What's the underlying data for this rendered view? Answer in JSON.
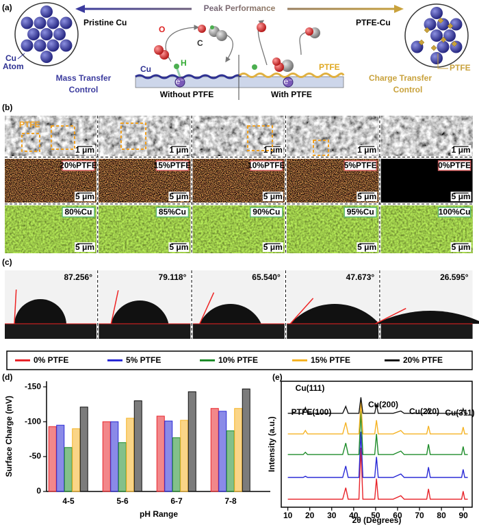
{
  "panel_a": {
    "label": "(a)",
    "arrow_title": "Peak Performance",
    "left_title": "Pristine Cu",
    "right_title": "PTFE-Cu",
    "atom_label": [
      "Cu",
      "Atom"
    ],
    "left_caption": [
      "Mass Transfer",
      "Control"
    ],
    "right_caption": [
      "Charge Transfer",
      "Control"
    ],
    "without": "Without PTFE",
    "with": "With PTFE",
    "cu_label": "Cu",
    "ptfe_label": "PTFE",
    "ptfe_callout": "PTFE",
    "atom_o": "O",
    "atom_c": "C",
    "atom_h": "H",
    "electron": "e⁻"
  },
  "panel_b": {
    "label": "(b)",
    "ptfe_label": "PTFE",
    "scale_sem": "1 μm",
    "scale_map": "5 μm",
    "ptfe_maps": [
      "20%PTFE",
      "15%PTFE",
      "10%PTFE",
      "5%PTFE",
      "0%PTFE"
    ],
    "cu_maps": [
      "80%Cu",
      "85%Cu",
      "90%Cu",
      "95%Cu",
      "100%Cu"
    ]
  },
  "panel_c": {
    "label": "(c)",
    "angles": [
      "87.256°",
      "79.118°",
      "65.540°",
      "47.673°",
      "26.595°"
    ]
  },
  "chart_data": [
    {
      "type": "bar",
      "title": "(d)",
      "xlabel": "pH Range",
      "ylabel": "Surface Charge (mV)",
      "categories": [
        "4-5",
        "5-6",
        "6-7",
        "7-8"
      ],
      "series": [
        {
          "name": "0% PTFE",
          "color": "#e8242a",
          "values": [
            -93,
            -100,
            -108,
            -119
          ]
        },
        {
          "name": "5% PTFE",
          "color": "#2a2ad6",
          "values": [
            -95,
            -100,
            -101,
            -115
          ]
        },
        {
          "name": "10% PTFE",
          "color": "#1e8c2a",
          "values": [
            -63,
            -70,
            -77,
            -87
          ]
        },
        {
          "name": "15% PTFE",
          "color": "#f5b324",
          "values": [
            -90,
            -105,
            -102,
            -119
          ]
        },
        {
          "name": "20% PTFE",
          "color": "#111111",
          "values": [
            -121,
            -130,
            -143,
            -147
          ]
        }
      ],
      "ylim": [
        0,
        -158
      ],
      "yticks": [
        0,
        -50,
        -100,
        -150
      ]
    },
    {
      "type": "line",
      "title": "(e)",
      "xlabel": "2θ (Degrees)",
      "ylabel": "Intensity (a.u.)",
      "x": [
        10,
        17,
        18,
        19,
        25,
        30,
        35,
        36.4,
        37.5,
        41,
        42.4,
        43.3,
        44.2,
        48,
        49.6,
        50.4,
        51.2,
        58,
        61.5,
        63,
        70,
        73.3,
        74.1,
        74.9,
        85,
        89.2,
        89.9,
        90.6,
        92
      ],
      "series": [
        {
          "color": "#e8242a",
          "values": [
            0.7,
            0.7,
            0.7,
            0.7,
            0.7,
            0.7,
            0.7,
            1.7,
            0.7,
            0.7,
            0.7,
            5.2,
            0.7,
            0.7,
            0.7,
            2.5,
            0.7,
            0.7,
            1.0,
            0.7,
            0.7,
            0.7,
            1.6,
            0.7,
            0.7,
            0.7,
            1.4,
            0.7,
            0.7
          ]
        },
        {
          "color": "#2a2ad6",
          "values": [
            2.6,
            2.6,
            2.7,
            2.6,
            2.6,
            2.6,
            2.6,
            3.6,
            2.6,
            2.6,
            2.6,
            6.6,
            2.6,
            2.6,
            2.6,
            4.4,
            2.6,
            2.6,
            2.9,
            2.6,
            2.6,
            2.6,
            3.5,
            2.6,
            2.6,
            2.6,
            3.3,
            2.6,
            2.6
          ]
        },
        {
          "color": "#1e8c2a",
          "values": [
            4.6,
            4.6,
            4.8,
            4.6,
            4.6,
            4.6,
            4.6,
            5.6,
            4.6,
            4.6,
            4.6,
            8.4,
            4.6,
            4.6,
            4.6,
            6.4,
            4.6,
            4.6,
            4.9,
            4.6,
            4.6,
            4.6,
            5.5,
            4.6,
            4.6,
            4.6,
            5.3,
            4.6,
            4.6
          ]
        },
        {
          "color": "#f5b324",
          "values": [
            6.4,
            6.4,
            6.7,
            6.4,
            6.4,
            6.4,
            6.4,
            7.4,
            6.4,
            6.4,
            6.4,
            9.2,
            6.4,
            6.4,
            6.4,
            7.6,
            6.4,
            6.4,
            6.7,
            6.4,
            6.4,
            6.4,
            7.1,
            6.4,
            6.4,
            6.4,
            7.0,
            6.4,
            6.4
          ]
        },
        {
          "color": "#111111",
          "values": [
            8.2,
            8.2,
            8.7,
            8.2,
            8.2,
            8.2,
            8.2,
            8.8,
            8.2,
            8.2,
            8.2,
            9.6,
            8.2,
            8.2,
            8.2,
            9.0,
            8.2,
            8.2,
            8.4,
            8.2,
            8.2,
            8.2,
            8.6,
            8.2,
            8.2,
            8.2,
            8.6,
            8.2,
            8.2
          ]
        }
      ],
      "xlim": [
        7,
        94
      ],
      "xticks": [
        10,
        20,
        30,
        40,
        50,
        60,
        70,
        80,
        90
      ],
      "ylim": [
        0,
        11
      ],
      "annotations": [
        "PTFE(100)",
        "Cu(111)",
        "Cu(200)",
        "Cu(220)",
        "Cu(311)"
      ]
    }
  ]
}
